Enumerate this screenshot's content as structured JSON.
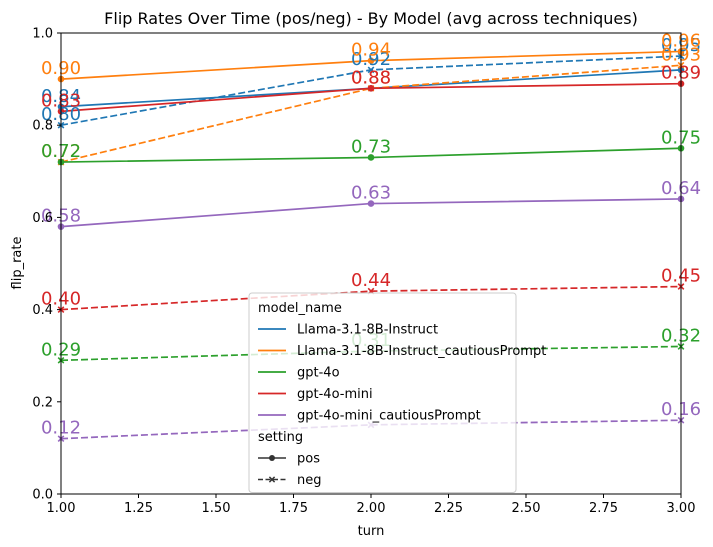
{
  "chart_data": {
    "type": "line",
    "title": "Flip Rates Over Time (pos/neg) - By Model (avg across techniques)",
    "xlabel": "turn",
    "ylabel": "flip_rate",
    "xlim": [
      1.0,
      3.0
    ],
    "ylim": [
      0.0,
      1.0
    ],
    "x": [
      1,
      2,
      3
    ],
    "x_ticks": [
      "1.00",
      "1.25",
      "1.50",
      "1.75",
      "2.00",
      "2.25",
      "2.50",
      "2.75",
      "3.00"
    ],
    "y_ticks": [
      "0.0",
      "0.2",
      "0.4",
      "0.6",
      "0.8",
      "1.0"
    ],
    "grid": false,
    "legend": {
      "placement": "lower-center",
      "hue_title": "model_name",
      "style_title": "setting",
      "style_items": [
        "pos",
        "neg"
      ]
    },
    "series": [
      {
        "name": "Llama-3.1-8B-Instruct",
        "setting": "pos",
        "color": "#1f77b4",
        "values": [
          0.84,
          0.88,
          0.92
        ],
        "labels": [
          "0.84",
          "",
          ""
        ]
      },
      {
        "name": "Llama-3.1-8B-Instruct",
        "setting": "neg",
        "color": "#1f77b4",
        "values": [
          0.8,
          0.92,
          0.95
        ],
        "labels": [
          "0.80",
          "0.92",
          "0.95"
        ]
      },
      {
        "name": "Llama-3.1-8B-Instruct_cautiousPrompt",
        "setting": "pos",
        "color": "#ff7f0e",
        "values": [
          0.9,
          0.94,
          0.96
        ],
        "labels": [
          "0.90",
          "0.94",
          "0.96"
        ]
      },
      {
        "name": "Llama-3.1-8B-Instruct_cautiousPrompt",
        "setting": "neg",
        "color": "#ff7f0e",
        "values": [
          0.72,
          0.88,
          0.93
        ],
        "labels": [
          "0.72",
          "0.88",
          "0.93"
        ]
      },
      {
        "name": "gpt-4o",
        "setting": "pos",
        "color": "#2ca02c",
        "values": [
          0.72,
          0.73,
          0.75
        ],
        "labels": [
          "0.72",
          "0.73",
          "0.75"
        ]
      },
      {
        "name": "gpt-4o",
        "setting": "neg",
        "color": "#2ca02c",
        "values": [
          0.29,
          0.31,
          0.32
        ],
        "labels": [
          "0.29",
          "0.31",
          "0.32"
        ]
      },
      {
        "name": "gpt-4o-mini",
        "setting": "pos",
        "color": "#d62728",
        "values": [
          0.83,
          0.88,
          0.89
        ],
        "labels": [
          "0.83",
          "0.88",
          "0.89"
        ]
      },
      {
        "name": "gpt-4o-mini",
        "setting": "neg",
        "color": "#d62728",
        "values": [
          0.4,
          0.44,
          0.45
        ],
        "labels": [
          "0.40",
          "0.44",
          "0.45"
        ]
      },
      {
        "name": "gpt-4o-mini_cautiousPrompt",
        "setting": "pos",
        "color": "#9467bd",
        "values": [
          0.58,
          0.63,
          0.64
        ],
        "labels": [
          "0.58",
          "0.63",
          "0.64"
        ]
      },
      {
        "name": "gpt-4o-mini_cautiousPrompt",
        "setting": "neg",
        "color": "#9467bd",
        "values": [
          0.12,
          0.15,
          0.16
        ],
        "labels": [
          "0.12",
          "",
          "0.16"
        ]
      }
    ]
  }
}
